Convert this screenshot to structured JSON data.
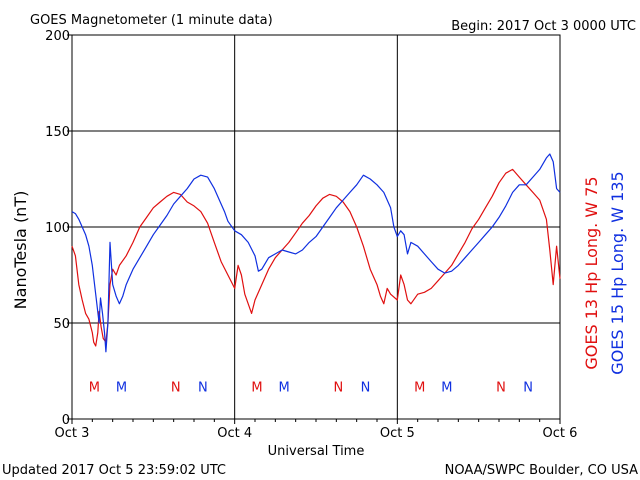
{
  "header": {
    "title": "GOES Magnetometer (1 minute data)",
    "begin": "Begin:  2017 Oct 3 0000 UTC"
  },
  "footer": {
    "updated": "Updated 2017 Oct  5 23:59:02 UTC",
    "credit": "NOAA/SWPC Boulder, CO USA"
  },
  "colors": {
    "goes13": "#e01010",
    "goes15": "#1030e0"
  },
  "chart_data": {
    "type": "line",
    "title": "GOES Magnetometer (1 minute data)",
    "xlabel": "Universal Time",
    "ylabel": "NanoTesla (nT)",
    "ylim": [
      0,
      200
    ],
    "xlim": [
      0,
      72
    ],
    "x_unit": "hours since 2017 Oct 3 0000 UTC",
    "x_ticks": [
      {
        "x": 0,
        "label": "Oct 3"
      },
      {
        "x": 24,
        "label": "Oct 4"
      },
      {
        "x": 48,
        "label": "Oct 5"
      },
      {
        "x": 72,
        "label": "Oct 6"
      }
    ],
    "y_ticks": [
      0,
      50,
      100,
      150,
      200
    ],
    "grid": true,
    "series": [
      {
        "name": "GOES 13 Hp  Long. W 75",
        "color": "#e01010",
        "points": [
          [
            0,
            90
          ],
          [
            0.5,
            85
          ],
          [
            1,
            70
          ],
          [
            1.5,
            62
          ],
          [
            2,
            55
          ],
          [
            2.5,
            52
          ],
          [
            3,
            45
          ],
          [
            3.2,
            40
          ],
          [
            3.5,
            38
          ],
          [
            3.8,
            45
          ],
          [
            4,
            56
          ],
          [
            4.3,
            48
          ],
          [
            4.6,
            42
          ],
          [
            5,
            40
          ],
          [
            5.3,
            50
          ],
          [
            5.6,
            70
          ],
          [
            6,
            78
          ],
          [
            6.5,
            75
          ],
          [
            7,
            80
          ],
          [
            8,
            85
          ],
          [
            9,
            92
          ],
          [
            10,
            100
          ],
          [
            11,
            105
          ],
          [
            12,
            110
          ],
          [
            13,
            113
          ],
          [
            14,
            116
          ],
          [
            15,
            118
          ],
          [
            16,
            117
          ],
          [
            17,
            113
          ],
          [
            18,
            111
          ],
          [
            19,
            108
          ],
          [
            20,
            102
          ],
          [
            21,
            92
          ],
          [
            22,
            82
          ],
          [
            23,
            75
          ],
          [
            24,
            68
          ],
          [
            24.5,
            80
          ],
          [
            25,
            75
          ],
          [
            25.5,
            65
          ],
          [
            26,
            60
          ],
          [
            26.5,
            55
          ],
          [
            27,
            62
          ],
          [
            28,
            70
          ],
          [
            29,
            78
          ],
          [
            30,
            84
          ],
          [
            31,
            88
          ],
          [
            32,
            92
          ],
          [
            33,
            97
          ],
          [
            34,
            102
          ],
          [
            35,
            106
          ],
          [
            36,
            111
          ],
          [
            37,
            115
          ],
          [
            38,
            117
          ],
          [
            39,
            116
          ],
          [
            40,
            113
          ],
          [
            41,
            108
          ],
          [
            42,
            100
          ],
          [
            43,
            90
          ],
          [
            44,
            78
          ],
          [
            45,
            70
          ],
          [
            45.5,
            64
          ],
          [
            46,
            60
          ],
          [
            46.5,
            68
          ],
          [
            47,
            65
          ],
          [
            48,
            62
          ],
          [
            48.5,
            75
          ],
          [
            49,
            70
          ],
          [
            49.5,
            62
          ],
          [
            50,
            60
          ],
          [
            51,
            65
          ],
          [
            52,
            66
          ],
          [
            53,
            68
          ],
          [
            54,
            72
          ],
          [
            55,
            76
          ],
          [
            56,
            80
          ],
          [
            57,
            86
          ],
          [
            58,
            92
          ],
          [
            59,
            99
          ],
          [
            60,
            104
          ],
          [
            61,
            110
          ],
          [
            62,
            116
          ],
          [
            63,
            123
          ],
          [
            64,
            128
          ],
          [
            65,
            130
          ],
          [
            66,
            126
          ],
          [
            67,
            122
          ],
          [
            68,
            118
          ],
          [
            69,
            114
          ],
          [
            70,
            104
          ],
          [
            70.5,
            88
          ],
          [
            71,
            70
          ],
          [
            71.5,
            90
          ],
          [
            72,
            73
          ]
        ]
      },
      {
        "name": "GOES 15 Hp  Long. W 135",
        "color": "#1030e0",
        "points": [
          [
            0,
            108
          ],
          [
            0.5,
            107
          ],
          [
            1,
            104
          ],
          [
            1.5,
            100
          ],
          [
            2,
            96
          ],
          [
            2.5,
            90
          ],
          [
            3,
            80
          ],
          [
            3.5,
            65
          ],
          [
            4,
            50
          ],
          [
            4.2,
            63
          ],
          [
            4.5,
            55
          ],
          [
            4.8,
            45
          ],
          [
            5,
            35
          ],
          [
            5.3,
            50
          ],
          [
            5.6,
            92
          ],
          [
            6,
            70
          ],
          [
            6.5,
            64
          ],
          [
            7,
            60
          ],
          [
            7.5,
            64
          ],
          [
            8,
            70
          ],
          [
            9,
            78
          ],
          [
            10,
            84
          ],
          [
            11,
            90
          ],
          [
            12,
            96
          ],
          [
            13,
            101
          ],
          [
            14,
            106
          ],
          [
            15,
            112
          ],
          [
            16,
            116
          ],
          [
            17,
            120
          ],
          [
            18,
            125
          ],
          [
            19,
            127
          ],
          [
            20,
            126
          ],
          [
            21,
            120
          ],
          [
            22,
            112
          ],
          [
            22.5,
            108
          ],
          [
            23,
            103
          ],
          [
            24,
            98
          ],
          [
            25,
            96
          ],
          [
            26,
            92
          ],
          [
            27,
            85
          ],
          [
            27.5,
            77
          ],
          [
            28,
            78
          ],
          [
            29,
            84
          ],
          [
            30,
            86
          ],
          [
            31,
            88
          ],
          [
            32,
            87
          ],
          [
            33,
            86
          ],
          [
            34,
            88
          ],
          [
            35,
            92
          ],
          [
            36,
            95
          ],
          [
            37,
            100
          ],
          [
            38,
            105
          ],
          [
            39,
            110
          ],
          [
            40,
            114
          ],
          [
            41,
            118
          ],
          [
            42,
            122
          ],
          [
            43,
            127
          ],
          [
            44,
            125
          ],
          [
            45,
            122
          ],
          [
            46,
            118
          ],
          [
            47,
            110
          ],
          [
            47.5,
            100
          ],
          [
            48,
            95
          ],
          [
            48.5,
            98
          ],
          [
            49,
            96
          ],
          [
            49.5,
            86
          ],
          [
            50,
            92
          ],
          [
            51,
            90
          ],
          [
            52,
            86
          ],
          [
            53,
            82
          ],
          [
            54,
            78
          ],
          [
            55,
            76
          ],
          [
            56,
            77
          ],
          [
            57,
            80
          ],
          [
            58,
            84
          ],
          [
            59,
            88
          ],
          [
            60,
            92
          ],
          [
            61,
            96
          ],
          [
            62,
            100
          ],
          [
            63,
            105
          ],
          [
            64,
            111
          ],
          [
            65,
            118
          ],
          [
            66,
            122
          ],
          [
            67,
            122
          ],
          [
            68,
            126
          ],
          [
            69,
            130
          ],
          [
            70,
            136
          ],
          [
            70.5,
            138
          ],
          [
            71,
            134
          ],
          [
            71.5,
            120
          ],
          [
            72,
            118
          ]
        ]
      }
    ],
    "annotations": [
      {
        "x": 3.3,
        "label": "M",
        "series": "GOES 13"
      },
      {
        "x": 7.3,
        "label": "M",
        "series": "GOES 15"
      },
      {
        "x": 15.3,
        "label": "N",
        "series": "GOES 13"
      },
      {
        "x": 19.3,
        "label": "N",
        "series": "GOES 15"
      },
      {
        "x": 27.3,
        "label": "M",
        "series": "GOES 13"
      },
      {
        "x": 31.3,
        "label": "M",
        "series": "GOES 15"
      },
      {
        "x": 39.3,
        "label": "N",
        "series": "GOES 13"
      },
      {
        "x": 43.3,
        "label": "N",
        "series": "GOES 15"
      },
      {
        "x": 51.3,
        "label": "M",
        "series": "GOES 13"
      },
      {
        "x": 55.3,
        "label": "M",
        "series": "GOES 15"
      },
      {
        "x": 63.3,
        "label": "N",
        "series": "GOES 13"
      },
      {
        "x": 67.3,
        "label": "N",
        "series": "GOES 15"
      }
    ],
    "annotation_y": 17
  }
}
